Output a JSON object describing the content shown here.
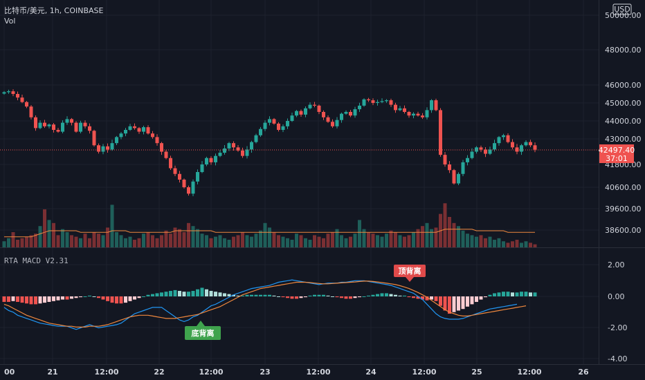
{
  "header": {
    "symbol_line": "比特币/美元, 1h, COINBASE",
    "volume_label": "Vol",
    "indicator_label": "RTA MACD V2.31",
    "currency": "USD"
  },
  "price_axis": {
    "ticks": [
      "50000.00",
      "48000.00",
      "46000.00",
      "45000.00",
      "44000.00",
      "43000.00",
      "41800.00",
      "40600.00",
      "39600.00",
      "38600.00"
    ],
    "last_price": "42497.40",
    "countdown": "37:01"
  },
  "macd_axis": {
    "ticks": [
      "2.00",
      "0.00",
      "-2.00",
      "-4.00"
    ]
  },
  "time_axis": {
    "ticks": [
      "00",
      "21",
      "12:00",
      "22",
      "12:00",
      "23",
      "12:00",
      "24",
      "12:00",
      "25",
      "12:00",
      "26"
    ]
  },
  "annotations": {
    "top_divergence": "顶背离",
    "bottom_divergence": "底背离"
  },
  "colors": {
    "background": "#131722",
    "up": "#26a69a",
    "down": "#ef5350",
    "grid": "#1e222d",
    "ma_line": "#f0883e",
    "macd_line": "#2196f3",
    "signal_line": "#f0883e",
    "top_badge": "#e04a4a",
    "bottom_badge": "#3fa34d"
  },
  "chart_data": [
    {
      "type": "candlestick",
      "ylabel": "USD",
      "ylim": [
        38000,
        50500
      ],
      "close_series": [
        45600,
        45650,
        45500,
        45300,
        45050,
        44800,
        44200,
        43600,
        43900,
        43700,
        43800,
        43500,
        43400,
        43900,
        44100,
        43900,
        43400,
        43900,
        43700,
        43450,
        42700,
        42400,
        42650,
        42500,
        42800,
        43100,
        43300,
        43500,
        43700,
        43600,
        43400,
        43650,
        43300,
        43100,
        42800,
        42400,
        42100,
        41600,
        41300,
        41000,
        40600,
        40300,
        40900,
        41400,
        41800,
        42100,
        41900,
        42200,
        42350,
        42550,
        42800,
        42600,
        42450,
        42200,
        42500,
        42850,
        43200,
        43550,
        43900,
        44100,
        43850,
        43500,
        43700,
        44000,
        44300,
        44550,
        44350,
        44700,
        44900,
        44850,
        44500,
        44200,
        43950,
        43700,
        44050,
        44400,
        44500,
        44300,
        44650,
        44850,
        45200,
        45150,
        45000,
        45050,
        45100,
        45150,
        44900,
        44600,
        44700,
        44500,
        44300,
        44400,
        44300,
        44200,
        44600,
        45150,
        44600,
        42250,
        41800,
        41500,
        40800,
        41300,
        41900,
        42100,
        42400,
        42600,
        42500,
        42300,
        42500,
        42800,
        43100,
        43200,
        42850,
        42600,
        42400,
        42700,
        42850,
        42700,
        42497
      ]
    },
    {
      "type": "bar",
      "ylabel": "Vol",
      "values": [
        4,
        6,
        10,
        5,
        6,
        7,
        8,
        9,
        14,
        25,
        18,
        16,
        8,
        12,
        10,
        8,
        7,
        6,
        9,
        6,
        10,
        9,
        8,
        13,
        28,
        10,
        8,
        6,
        7,
        5,
        6,
        9,
        10,
        8,
        6,
        8,
        11,
        9,
        13,
        12,
        10,
        16,
        14,
        12,
        9,
        8,
        6,
        7,
        8,
        6,
        5,
        7,
        8,
        10,
        8,
        7,
        9,
        11,
        16,
        13,
        10,
        8,
        7,
        6,
        5,
        9,
        8,
        6,
        5,
        8,
        7,
        6,
        9,
        10,
        12,
        8,
        6,
        7,
        9,
        18,
        12,
        10,
        9,
        8,
        7,
        9,
        11,
        10,
        8,
        7,
        8,
        10,
        12,
        14,
        16,
        12,
        13,
        22,
        29,
        20,
        16,
        14,
        11,
        9,
        8,
        7,
        8,
        6,
        7,
        5,
        6,
        4,
        3,
        4,
        5,
        3,
        4,
        3,
        2
      ],
      "ma_values": [
        6,
        6,
        6,
        6,
        6,
        6,
        6,
        7,
        8,
        9,
        10,
        10,
        10,
        10,
        10,
        10,
        10,
        9,
        9,
        9,
        9,
        9,
        9,
        9,
        10,
        10,
        10,
        10,
        9,
        9,
        9,
        9,
        9,
        9,
        9,
        9,
        9,
        9,
        10,
        10,
        10,
        10,
        10,
        10,
        10,
        10,
        10,
        9,
        9,
        9,
        9,
        9,
        9,
        9,
        9,
        9,
        9,
        9,
        9,
        9,
        9,
        9,
        9,
        9,
        9,
        9,
        9,
        9,
        9,
        9,
        9,
        9,
        9,
        9,
        9,
        9,
        9,
        9,
        9,
        9,
        9,
        9,
        9,
        9,
        9,
        9,
        9,
        9,
        9,
        9,
        9,
        9,
        9,
        9,
        9,
        9,
        9,
        10,
        11,
        11,
        11,
        11,
        11,
        11,
        11,
        10,
        10,
        10,
        10,
        10,
        10,
        10,
        9,
        9,
        9,
        9,
        9,
        9,
        9
      ]
    },
    {
      "type": "line",
      "title": "RTA MACD V2.31",
      "ylim": [
        -4.6,
        2.6
      ],
      "histogram": [
        -0.35,
        -0.35,
        -0.3,
        -0.35,
        -0.4,
        -0.45,
        -0.5,
        -0.5,
        -0.45,
        -0.4,
        -0.35,
        -0.3,
        -0.25,
        -0.2,
        -0.2,
        -0.15,
        -0.1,
        -0.05,
        0.0,
        0.05,
        0.0,
        -0.1,
        -0.2,
        -0.3,
        -0.4,
        -0.45,
        -0.45,
        -0.4,
        -0.3,
        -0.2,
        -0.1,
        0.0,
        0.1,
        0.15,
        0.2,
        0.25,
        0.3,
        0.35,
        0.4,
        0.35,
        0.3,
        0.3,
        0.35,
        0.45,
        0.55,
        0.45,
        0.35,
        0.3,
        0.25,
        0.2,
        0.15,
        0.1,
        0.05,
        0.05,
        0.1,
        0.1,
        0.1,
        0.1,
        0.1,
        0.1,
        0.05,
        0.0,
        -0.05,
        -0.1,
        -0.15,
        -0.15,
        -0.1,
        -0.05,
        0.05,
        0.1,
        0.1,
        0.1,
        0.05,
        0.0,
        -0.05,
        -0.1,
        -0.15,
        -0.15,
        -0.1,
        -0.05,
        0.0,
        0.05,
        0.1,
        0.15,
        0.2,
        0.2,
        0.15,
        0.1,
        0.05,
        0.05,
        -0.05,
        -0.1,
        -0.15,
        -0.2,
        -0.25,
        -0.2,
        -0.3,
        -0.6,
        -0.9,
        -1.1,
        -1.0,
        -0.9,
        -0.8,
        -0.65,
        -0.5,
        -0.35,
        -0.2,
        -0.05,
        0.1,
        0.2,
        0.25,
        0.3,
        0.3,
        0.25,
        0.25,
        0.3,
        0.3,
        0.25,
        0.25
      ],
      "macd_line": [
        -0.7,
        -0.9,
        -1.0,
        -1.2,
        -1.3,
        -1.4,
        -1.5,
        -1.6,
        -1.7,
        -1.75,
        -1.8,
        -1.85,
        -1.9,
        -1.9,
        -1.9,
        -2.0,
        -2.1,
        -2.0,
        -1.9,
        -1.8,
        -1.9,
        -2.0,
        -1.95,
        -1.9,
        -1.85,
        -1.8,
        -1.7,
        -1.5,
        -1.3,
        -1.1,
        -1.0,
        -0.9,
        -0.8,
        -0.7,
        -0.7,
        -0.7,
        -0.9,
        -1.1,
        -1.3,
        -1.5,
        -1.6,
        -1.5,
        -1.3,
        -1.2,
        -1.0,
        -0.8,
        -0.6,
        -0.5,
        -0.35,
        -0.2,
        -0.05,
        0.1,
        0.2,
        0.3,
        0.4,
        0.5,
        0.55,
        0.6,
        0.65,
        0.7,
        0.8,
        0.9,
        0.95,
        1.0,
        1.05,
        1.0,
        0.95,
        0.9,
        0.85,
        0.8,
        0.75,
        0.8,
        0.85,
        0.85,
        0.85,
        0.9,
        0.9,
        0.95,
        1.0,
        1.0,
        1.0,
        0.95,
        0.9,
        0.85,
        0.8,
        0.75,
        0.7,
        0.6,
        0.5,
        0.4,
        0.3,
        0.2,
        0.0,
        -0.2,
        -0.5,
        -0.8,
        -1.1,
        -1.3,
        -1.4,
        -1.45,
        -1.45,
        -1.45,
        -1.4,
        -1.3,
        -1.2,
        -1.1,
        -1.0,
        -0.9,
        -0.8,
        -0.75,
        -0.7,
        -0.65,
        -0.6,
        -0.55,
        -0.5
      ],
      "signal_line": [
        -0.5,
        -0.6,
        -0.75,
        -0.9,
        -1.05,
        -1.2,
        -1.3,
        -1.4,
        -1.5,
        -1.6,
        -1.7,
        -1.75,
        -1.8,
        -1.85,
        -1.9,
        -1.9,
        -1.95,
        -1.95,
        -1.95,
        -1.9,
        -1.9,
        -1.9,
        -1.85,
        -1.8,
        -1.7,
        -1.6,
        -1.5,
        -1.4,
        -1.3,
        -1.25,
        -1.2,
        -1.2,
        -1.2,
        -1.25,
        -1.3,
        -1.35,
        -1.4,
        -1.4,
        -1.4,
        -1.35,
        -1.3,
        -1.25,
        -1.2,
        -1.15,
        -1.05,
        -0.95,
        -0.85,
        -0.75,
        -0.65,
        -0.5,
        -0.35,
        -0.2,
        -0.05,
        0.1,
        0.2,
        0.3,
        0.4,
        0.5,
        0.55,
        0.6,
        0.65,
        0.7,
        0.75,
        0.8,
        0.85,
        0.9,
        0.9,
        0.9,
        0.88,
        0.85,
        0.82,
        0.8,
        0.8,
        0.82,
        0.84,
        0.86,
        0.88,
        0.9,
        0.92,
        0.95,
        0.97,
        0.97,
        0.95,
        0.92,
        0.88,
        0.84,
        0.8,
        0.75,
        0.68,
        0.6,
        0.5,
        0.38,
        0.25,
        0.1,
        -0.05,
        -0.25,
        -0.45,
        -0.65,
        -0.85,
        -1.0,
        -1.1,
        -1.2,
        -1.25,
        -1.25,
        -1.2,
        -1.15,
        -1.1,
        -1.05,
        -1.0,
        -0.95,
        -0.9,
        -0.85,
        -0.8,
        -0.75,
        -0.7,
        -0.65,
        -0.6
      ]
    }
  ]
}
